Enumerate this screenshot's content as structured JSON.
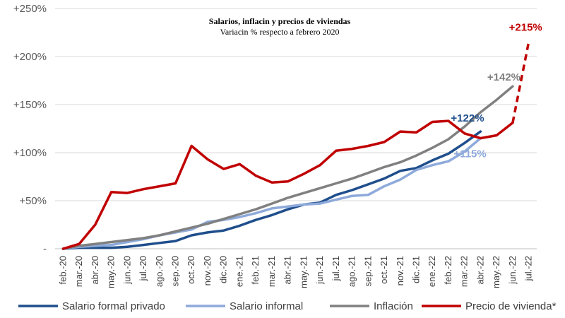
{
  "chart_data": {
    "type": "line",
    "title": "Salarios, inflacin y precios de viviendas",
    "subtitle": "Variacin % respecto a febrero 2020",
    "categories": [
      "feb.-20",
      "mar.-20",
      "abr.-20",
      "may.-20",
      "jun.-20",
      "jul.-20",
      "ago.-20",
      "sep.-20",
      "oct.-20",
      "nov.-20",
      "dic.-20",
      "ene.-21",
      "feb.-21",
      "mar.-21",
      "abr.-21",
      "may.-21",
      "jun.-21",
      "jul.-21",
      "ago.-21",
      "sep.-21",
      "oct.-21",
      "nov.-21",
      "dic.-21",
      "ene.-22",
      "feb.-22",
      "mar.-22",
      "abr.-22",
      "may.-22",
      "jun.-22",
      "jul.-22"
    ],
    "ylim": [
      0,
      250
    ],
    "yticks": [
      0,
      50,
      100,
      150,
      200,
      250
    ],
    "ytick_labels": [
      "-",
      "+50%",
      "+100%",
      "+150%",
      "+200%",
      "+250%"
    ],
    "series": [
      {
        "name": "Salario formal privado",
        "color": "#1f4e8c",
        "values": [
          0,
          1,
          1,
          1,
          2,
          4,
          6,
          8,
          14,
          17,
          19,
          24,
          30,
          35,
          41,
          46,
          48,
          56,
          61,
          67,
          73,
          81,
          84,
          92,
          99,
          110,
          122,
          null,
          null,
          null
        ]
      },
      {
        "name": "Salario informal",
        "color": "#8eaadb",
        "values": [
          0,
          2,
          3,
          4,
          7,
          10,
          14,
          17,
          20,
          28,
          30,
          33,
          37,
          42,
          44,
          46,
          47,
          51,
          55,
          56,
          65,
          72,
          82,
          87,
          91,
          101,
          115,
          null,
          null,
          null
        ]
      },
      {
        "name": "Inflación",
        "color": "#808080",
        "values": [
          0,
          3,
          5,
          7,
          9,
          11,
          14,
          18,
          22,
          26,
          31,
          36,
          41,
          47,
          53,
          58,
          63,
          68,
          73,
          79,
          85,
          90,
          97,
          105,
          114,
          127,
          142,
          155,
          169,
          null
        ]
      },
      {
        "name": "Precio de vivienda*",
        "color": "#c00000",
        "values": [
          0,
          5,
          25,
          59,
          58,
          62,
          65,
          68,
          107,
          93,
          83,
          88,
          76,
          69,
          70,
          78,
          87,
          102,
          104,
          107,
          111,
          122,
          121,
          132,
          133,
          120,
          115,
          118,
          131,
          215
        ],
        "dashed_from_index": 28
      }
    ],
    "annotations": [
      {
        "text": "+215%",
        "color": "#c00000",
        "series": 3
      },
      {
        "text": "+142%",
        "color": "#808080",
        "series": 2
      },
      {
        "text": "+122%",
        "color": "#1f4e8c",
        "series": 0
      },
      {
        "text": "+115%",
        "color": "#8eaadb",
        "series": 1
      }
    ],
    "legend_position": "bottom"
  }
}
